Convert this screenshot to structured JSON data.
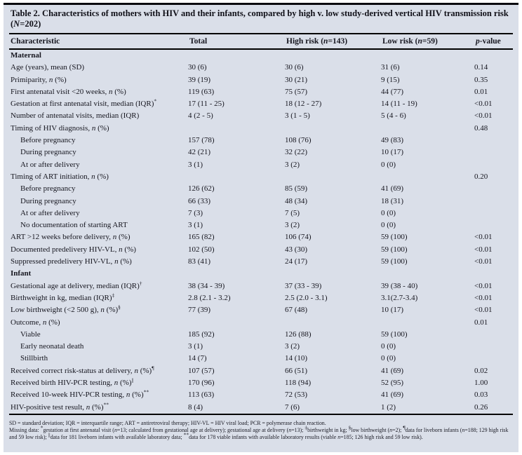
{
  "table": {
    "title": "Table 2. Characteristics of mothers with HIV and their infants, compared by high v. low study-derived vertical HIV transmission risk (N=202)",
    "columns": [
      "Characteristic",
      "Total",
      "High risk (n=143)",
      "Low risk (n=59)",
      "p-value"
    ],
    "rows": [
      {
        "type": "section",
        "label": "Maternal"
      },
      {
        "label": "Age (years), mean (SD)",
        "cells": [
          "30 (6)",
          "30 (6)",
          "31 (6)",
          "0.14"
        ]
      },
      {
        "label": "Primiparity, n (%)",
        "cells": [
          "39 (19)",
          "30 (21)",
          "9 (15)",
          "0.35"
        ]
      },
      {
        "label": "First antenatal visit <20 weeks, n (%)",
        "cells": [
          "119 (63)",
          "75 (57)",
          "44 (77)",
          "0.01"
        ]
      },
      {
        "label": "Gestation at first antenatal visit, median (IQR)*",
        "cells": [
          "17 (11 - 25)",
          "18 (12 - 27)",
          "14 (11 - 19)",
          "<0.01"
        ]
      },
      {
        "label": "Number of antenatal visits, median (IQR)",
        "cells": [
          "4 (2 - 5)",
          "3 (1 - 5)",
          "5 (4 - 6)",
          "<0.01"
        ]
      },
      {
        "label": "Timing of HIV diagnosis, n (%)",
        "cells": [
          "",
          "",
          "",
          "0.48"
        ]
      },
      {
        "indent": true,
        "label": "Before pregnancy",
        "cells": [
          "157 (78)",
          "108 (76)",
          "49 (83)",
          ""
        ]
      },
      {
        "indent": true,
        "label": "During pregnancy",
        "cells": [
          "42 (21)",
          "32 (22)",
          "10 (17)",
          ""
        ]
      },
      {
        "indent": true,
        "label": "At or after delivery",
        "cells": [
          "3 (1)",
          "3 (2)",
          "0 (0)",
          ""
        ]
      },
      {
        "label": "Timing of ART initiation, n (%)",
        "cells": [
          "",
          "",
          "",
          "0.20"
        ]
      },
      {
        "indent": true,
        "label": "Before pregnancy",
        "cells": [
          "126 (62)",
          "85 (59)",
          "41 (69)",
          ""
        ]
      },
      {
        "indent": true,
        "label": "During pregnancy",
        "cells": [
          "66 (33)",
          "48 (34)",
          "18 (31)",
          ""
        ]
      },
      {
        "indent": true,
        "label": "At or after delivery",
        "cells": [
          "7 (3)",
          "7 (5)",
          "0 (0)",
          ""
        ]
      },
      {
        "indent": true,
        "label": "No documentation of starting ART",
        "cells": [
          "3 (1)",
          "3 (2)",
          "0 (0)",
          ""
        ]
      },
      {
        "label": "ART >12 weeks before delivery, n (%)",
        "cells": [
          "165 (82)",
          "106 (74)",
          "59 (100)",
          "<0.01"
        ]
      },
      {
        "label": "Documented predelivery HIV-VL, n (%)",
        "cells": [
          "102 (50)",
          "43 (30)",
          "59 (100)",
          "<0.01"
        ]
      },
      {
        "label": "Suppressed predelivery HIV-VL, n (%)",
        "cells": [
          "83 (41)",
          "24 (17)",
          "59 (100)",
          "<0.01"
        ]
      },
      {
        "type": "section",
        "label": "Infant"
      },
      {
        "label": "Gestational age at delivery, median (IQR)†",
        "cells": [
          "38 (34 - 39)",
          "37 (33 - 39)",
          "39 (38 - 40)",
          "<0.01"
        ]
      },
      {
        "label": "Birthweight in kg, median (IQR)‡",
        "cells": [
          "2.8 (2.1 - 3.2)",
          "2.5 (2.0 - 3.1)",
          "3.1(2.7-3.4)",
          "<0.01"
        ]
      },
      {
        "label": "Low birthweight (<2 500 g), n (%)§",
        "cells": [
          "77 (39)",
          "67 (48)",
          "10 (17)",
          "<0.01"
        ]
      },
      {
        "label": "Outcome, n (%)",
        "cells": [
          "",
          "",
          "",
          "0.01"
        ]
      },
      {
        "indent": true,
        "label": "Viable",
        "cells": [
          "185 (92)",
          "126 (88)",
          "59 (100)",
          ""
        ]
      },
      {
        "indent": true,
        "label": "Early neonatal death",
        "cells": [
          "3 (1)",
          "3 (2)",
          "0 (0)",
          ""
        ]
      },
      {
        "indent": true,
        "label": "Stillbirth",
        "cells": [
          "14 (7)",
          "14 (10)",
          "0 (0)",
          ""
        ]
      },
      {
        "label": "Received correct risk-status at delivery, n (%)¶",
        "cells": [
          "107 (57)",
          "66 (51)",
          "41 (69)",
          "0.02"
        ]
      },
      {
        "label": "Received birth HIV-PCR testing, n (%)||",
        "cells": [
          "170 (96)",
          "118 (94)",
          "52 (95)",
          "1.00"
        ]
      },
      {
        "label": "Received 10-week HIV-PCR testing, n (%)**",
        "cells": [
          "113 (63)",
          "72 (53)",
          "41 (69)",
          "0.03"
        ]
      },
      {
        "label": "HIV-positive test result, n (%)**",
        "cells": [
          "8 (4)",
          "7 (6)",
          "1 (2)",
          "0.26"
        ]
      }
    ],
    "footnotes": [
      "SD = standard deviation; IQR = interquartile range; ART = antiretroviral therapy; HIV-VL = HIV viral load; PCR = polymerase chain reaction.",
      "Missing data: *gestation at first antenatal visit (n=13; calculated from gestational age at delivery); gestational age at delivery (n=13); ‡birthweight in kg; §low birthweight (n=2); ¶data for liveborn infants (n=188; 129 high risk and 59 low risk); ||data for 181 liveborn infants with available laboratory data; **data for 178 viable infants with available laboratory results (viable n=185; 126 high risk and 59 low risk)."
    ],
    "colors": {
      "panel_background": "#dadfe9",
      "rule": "#000000",
      "text": "#16161f"
    }
  }
}
